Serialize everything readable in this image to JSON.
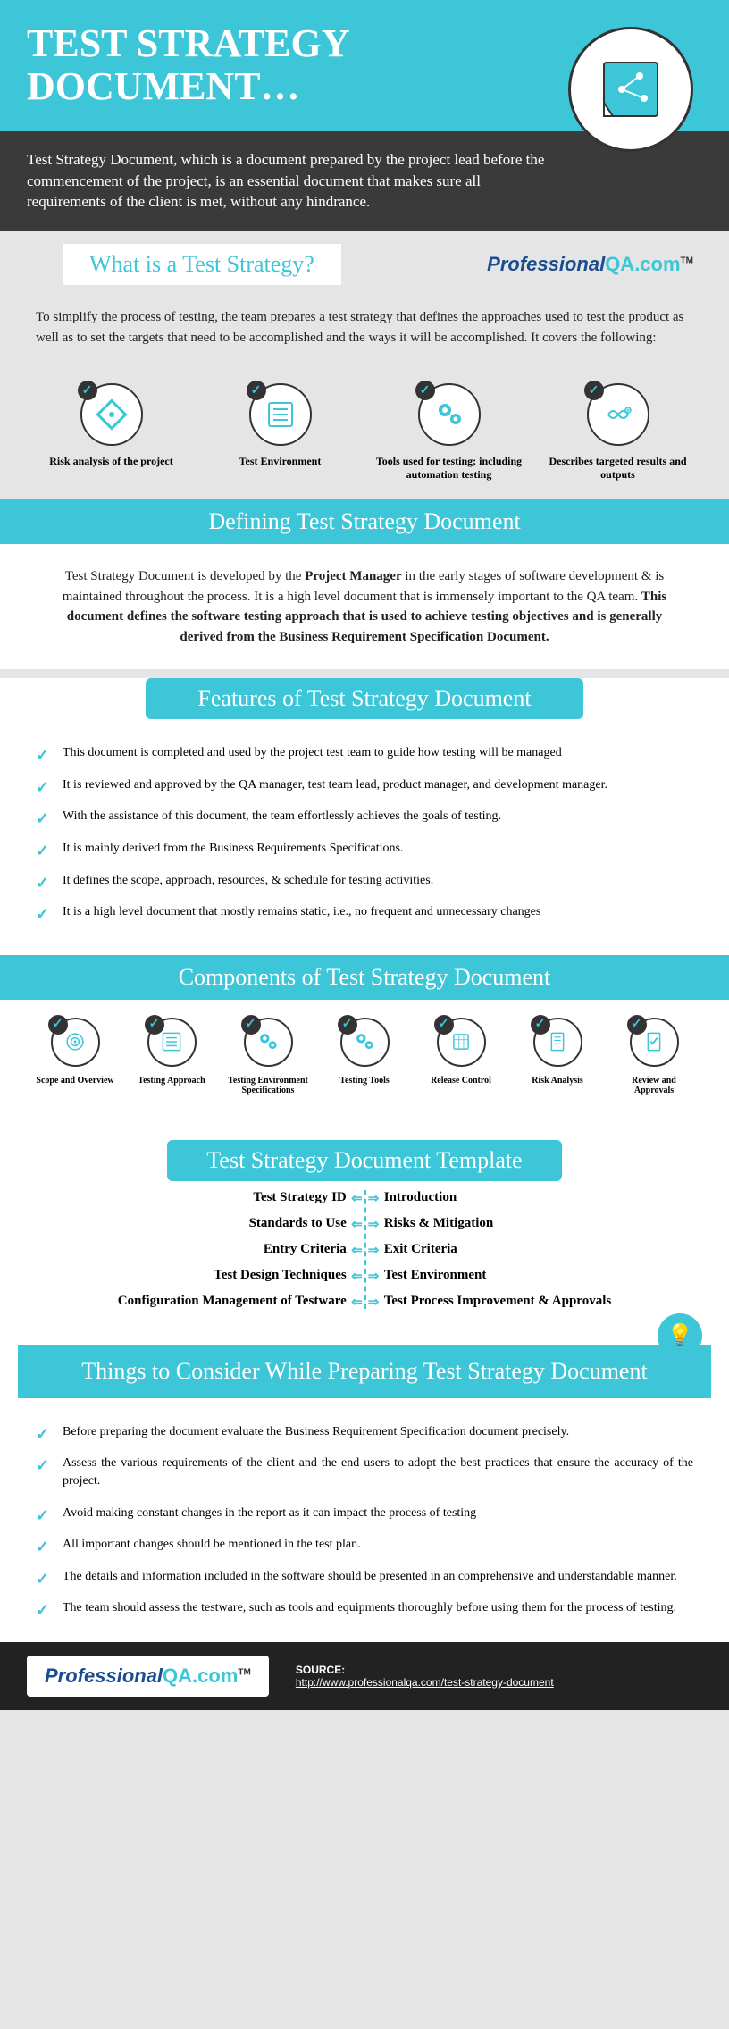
{
  "colors": {
    "cyan": "#3cc6d8",
    "dark": "#3a3a3a",
    "text": "#222222",
    "white": "#ffffff",
    "navy": "#1a4d8f"
  },
  "header": {
    "title": "TEST STRATEGY DOCUMENT…",
    "intro": "Test Strategy Document, which is a document prepared by the project lead before the commencement of the project, is an essential document that makes sure all requirements of the client is met, without any hindrance."
  },
  "logo": {
    "part1": "Professional",
    "part2": "QA.com",
    "tm": "TM"
  },
  "section_what": {
    "title": "What is a Test Strategy?",
    "body": "To simplify the process of testing, the team prepares a test strategy that defines the approaches used to test the product as well as to set the targets that need to be accomplished and the ways it will be accomplished. It covers the following:",
    "items": [
      {
        "label": "Risk analysis of the project",
        "icon": "diamond"
      },
      {
        "label": "Test Environment",
        "icon": "list"
      },
      {
        "label": "Tools used for testing; including automation testing",
        "icon": "gears"
      },
      {
        "label": "Describes targeted results and outputs",
        "icon": "infinity"
      }
    ]
  },
  "section_defining": {
    "title": "Defining Test Strategy Document",
    "body_html": "Test Strategy Document is developed by the <b>Project Manager</b> in the early stages of software development & is maintained throughout the process. It is a high level document that is immensely important to the QA team. <b>This document defines the software testing approach that is used to achieve testing objectives and is generally derived from the Business Requirement Specification Document.</b>"
  },
  "section_features": {
    "title": "Features of Test Strategy Document",
    "items": [
      "This document is completed and used by the project test team to guide how testing will be managed",
      "It is reviewed and approved by the QA manager, test team lead, product manager, and development manager.",
      "With the assistance of this document, the team effortlessly achieves the goals of testing.",
      "It is mainly derived from the Business Requirements Specifications.",
      "It defines the scope, approach, resources, & schedule for testing activities.",
      "It is a high level document that mostly remains static, i.e., no frequent and unnecessary changes"
    ]
  },
  "section_components": {
    "title": "Components of Test Strategy Document",
    "items": [
      {
        "label": "Scope and Overview",
        "icon": "target"
      },
      {
        "label": "Testing Approach",
        "icon": "list"
      },
      {
        "label": "Testing Environment Specifications",
        "icon": "gears"
      },
      {
        "label": "Testing Tools",
        "icon": "gears"
      },
      {
        "label": "Release Control",
        "icon": "grid"
      },
      {
        "label": "Risk Analysis",
        "icon": "doc"
      },
      {
        "label": "Review and Approvals",
        "icon": "check-doc"
      }
    ]
  },
  "section_template": {
    "title": "Test Strategy Document Template",
    "left": [
      "Test Strategy ID",
      "Standards to Use",
      "Entry Criteria",
      "Test Design Techniques",
      "Configuration Management of Testware"
    ],
    "right": [
      "Introduction",
      "Risks & Mitigation",
      "Exit Criteria",
      "Test Environment",
      "Test Process Improvement & Approvals"
    ]
  },
  "section_consider": {
    "title": "Things to Consider While Preparing Test Strategy Document",
    "items": [
      "Before preparing the document evaluate the Business Requirement Specification document precisely.",
      "Assess the various requirements of the client and the end users to adopt the best practices that ensure the accuracy of the project.",
      "Avoid making constant changes in the report as it can impact the process of testing",
      "All important changes should be mentioned in the test plan.",
      "The details and information included in the software should be presented in an comprehensive and understandable manner.",
      "The team should assess the testware, such as tools and equipments thoroughly before using them for the process of testing."
    ]
  },
  "footer": {
    "source_label": "SOURCE:",
    "source_url": "http://www.professionalqa.com/test-strategy-document"
  }
}
